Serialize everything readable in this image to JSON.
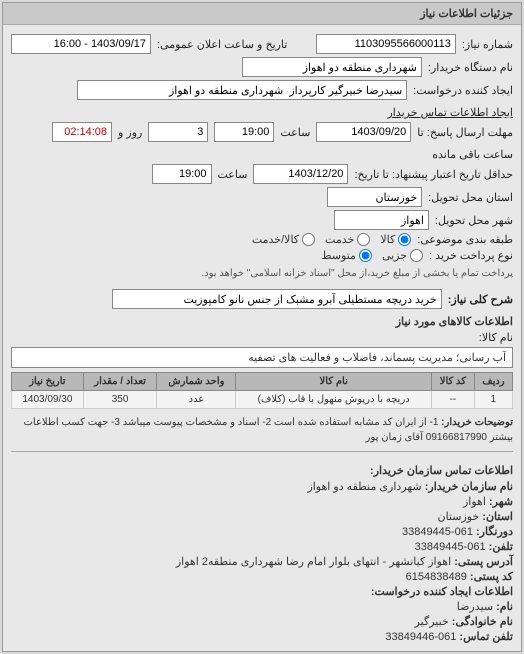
{
  "panel_title": "جزئیات اطلاعات نیاز",
  "labels": {
    "number": "شماره نیاز:",
    "announce": "تاریخ و ساعت اعلان عمومی:",
    "buyer_device": "نام دستگاه خریدار:",
    "requester": "ایجاد کننده درخواست:",
    "contact_requester": "ایجاد اطلاعات تماس خریدار",
    "response_until": "مهلت ارسال پاسخ: تا",
    "validity_until": "حداقل تاریخ اعتبار پیشنهاد: تا تاریخ:",
    "province": "استان محل تحویل:",
    "city": "شهر محل تحویل:",
    "grouping": "طبقه بندی موضوعی:",
    "payment_type": "نوع پرداخت خرید :",
    "need_title": "شرح کلی نیاز:",
    "items_section": "اطلاعات کالاهای مورد نیاز",
    "item_name_label": "نام کالا:",
    "saat": "ساعت",
    "rooz": "روز و",
    "remaining": "ساعت باقی مانده"
  },
  "fields": {
    "number": "1103095566000113",
    "announce": "1403/09/17 - 16:00",
    "buyer_device": "شهرداری منطقه دو اهواز",
    "requester": "سیدرضا خبیرگیر کارپرداز  شهرداری منطقه دو اهواز",
    "response_date": "1403/09/20",
    "response_time": "19:00",
    "days_left": "3",
    "time_left": "02:14:08",
    "validity_date": "1403/12/20",
    "validity_time": "19:00",
    "province": "خوزستان",
    "city": "اهواز",
    "need_title": "خرید دریچه مستطیلی آبرو مشبک از جنس نانو کامپوزیت",
    "category_text": "آب رسانی؛ مدیریت پسماند، فاضلاب و فعالیت های تصفیه"
  },
  "radios": {
    "grouping": {
      "options": [
        {
          "label": "کالا",
          "value": "kala",
          "checked": true
        },
        {
          "label": "خدمت",
          "value": "khedmat",
          "checked": false
        },
        {
          "label": "کالا/خدمت",
          "value": "both",
          "checked": false
        }
      ]
    },
    "payment": {
      "options": [
        {
          "label": "جزیی",
          "value": "partial",
          "checked": false
        },
        {
          "label": "متوسط",
          "value": "medium",
          "checked": true
        }
      ],
      "note": "پرداخت تمام یا بخشی از مبلغ خرید،از محل \"اسناد خزانه اسلامی\" خواهد بود."
    }
  },
  "table": {
    "headers": [
      "ردیف",
      "کد کالا",
      "نام کالا",
      "واحد شمارش",
      "تعداد / مقدار",
      "تاریخ نیاز"
    ],
    "rows": [
      [
        "1",
        "--",
        "دریچه با درپوش منهول با قاب (کلاف)",
        "عدد",
        "350",
        "1403/09/30"
      ]
    ]
  },
  "description": {
    "label": "توضیحات خریدار:",
    "text": "1- از ایران کد مشابه استفاده شده است 2- اسناد و مشخصات پیوست میباشد 3- جهت کسب اطلاعات بیشتر 09166817990 آقای زمان پور"
  },
  "contact": {
    "title": "اطلاعات تماس سازمان خریدار:",
    "lines": [
      {
        "k": "نام سازمان خریدار:",
        "v": "شهرداری منطقه دو اهواز"
      },
      {
        "k": "شهر:",
        "v": "اهواز"
      },
      {
        "k": "استان:",
        "v": "خوزستان"
      },
      {
        "k": "دورنگار:",
        "v": "061-33849445"
      },
      {
        "k": "تلفن:",
        "v": "061-33849445"
      },
      {
        "k": "آدرس پستی:",
        "v": "اهواز کیانشهر - انتهای بلوار امام رضا شهرداری منطقه2 اهواز"
      },
      {
        "k": "کد پستی:",
        "v": "6154838489"
      },
      {
        "k": "اطلاعات ایجاد کننده درخواست:",
        "v": ""
      },
      {
        "k": "نام:",
        "v": "سیدرضا"
      },
      {
        "k": "نام خانوادگی:",
        "v": "خبیرگیر"
      },
      {
        "k": "تلفن تماس:",
        "v": "061-33849446"
      }
    ]
  }
}
